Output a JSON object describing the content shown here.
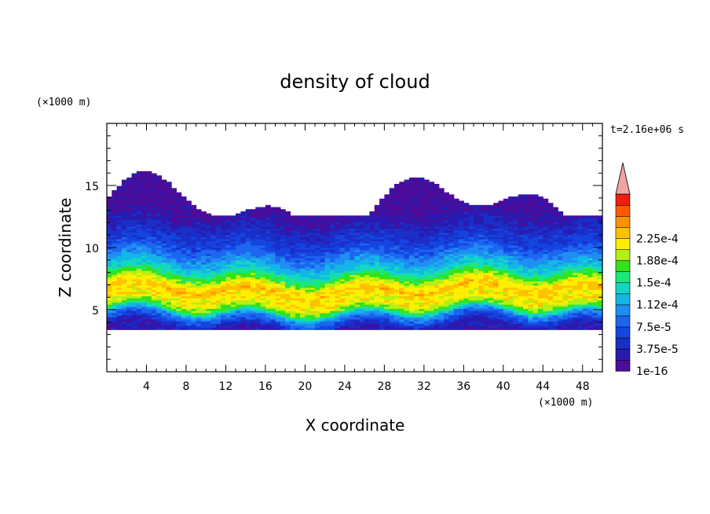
{
  "chart_data": {
    "type": "heatmap",
    "title": "density of cloud",
    "xlabel": "X coordinate",
    "ylabel": "Z coordinate",
    "x_unit": "(×1000 m)",
    "y_unit": "(×1000 m)",
    "time_label": "t=2.16e+06 s",
    "xlim": [
      0,
      50
    ],
    "ylim": [
      0,
      20
    ],
    "x_ticks": [
      4,
      8,
      12,
      16,
      20,
      24,
      28,
      32,
      36,
      40,
      44,
      48
    ],
    "y_ticks": [
      5,
      10,
      15
    ],
    "colorbar": {
      "labels": [
        "1e-16",
        "3.75e-5",
        "7.5e-5",
        "1.12e-4",
        "1.5e-4",
        "1.88e-4",
        "2.25e-4"
      ],
      "levels": 15,
      "colors": [
        "#4b0c9a",
        "#2a1bb0",
        "#1a2ec8",
        "#1545e0",
        "#1c66f0",
        "#1f8ef2",
        "#13b7e6",
        "#14d7c3",
        "#1be87a",
        "#33e21b",
        "#b6ef14",
        "#ffef00",
        "#ffc200",
        "#ff9200",
        "#ff5a00",
        "#f01c10"
      ],
      "extend_color": "#f2a4a4"
    },
    "profile": {
      "z_levels": [
        3.5,
        4.0,
        4.5,
        5.0,
        5.5,
        6.0,
        6.5,
        7.0,
        7.5,
        8.0,
        9.0,
        10.0,
        11.0,
        12.0,
        13.0,
        14.0,
        15.0,
        16.0,
        16.8
      ],
      "level_index": [
        1,
        3,
        5,
        9,
        11,
        11,
        12,
        11,
        9,
        7,
        5,
        3,
        2,
        1,
        0,
        0,
        0,
        0,
        0
      ]
    }
  }
}
